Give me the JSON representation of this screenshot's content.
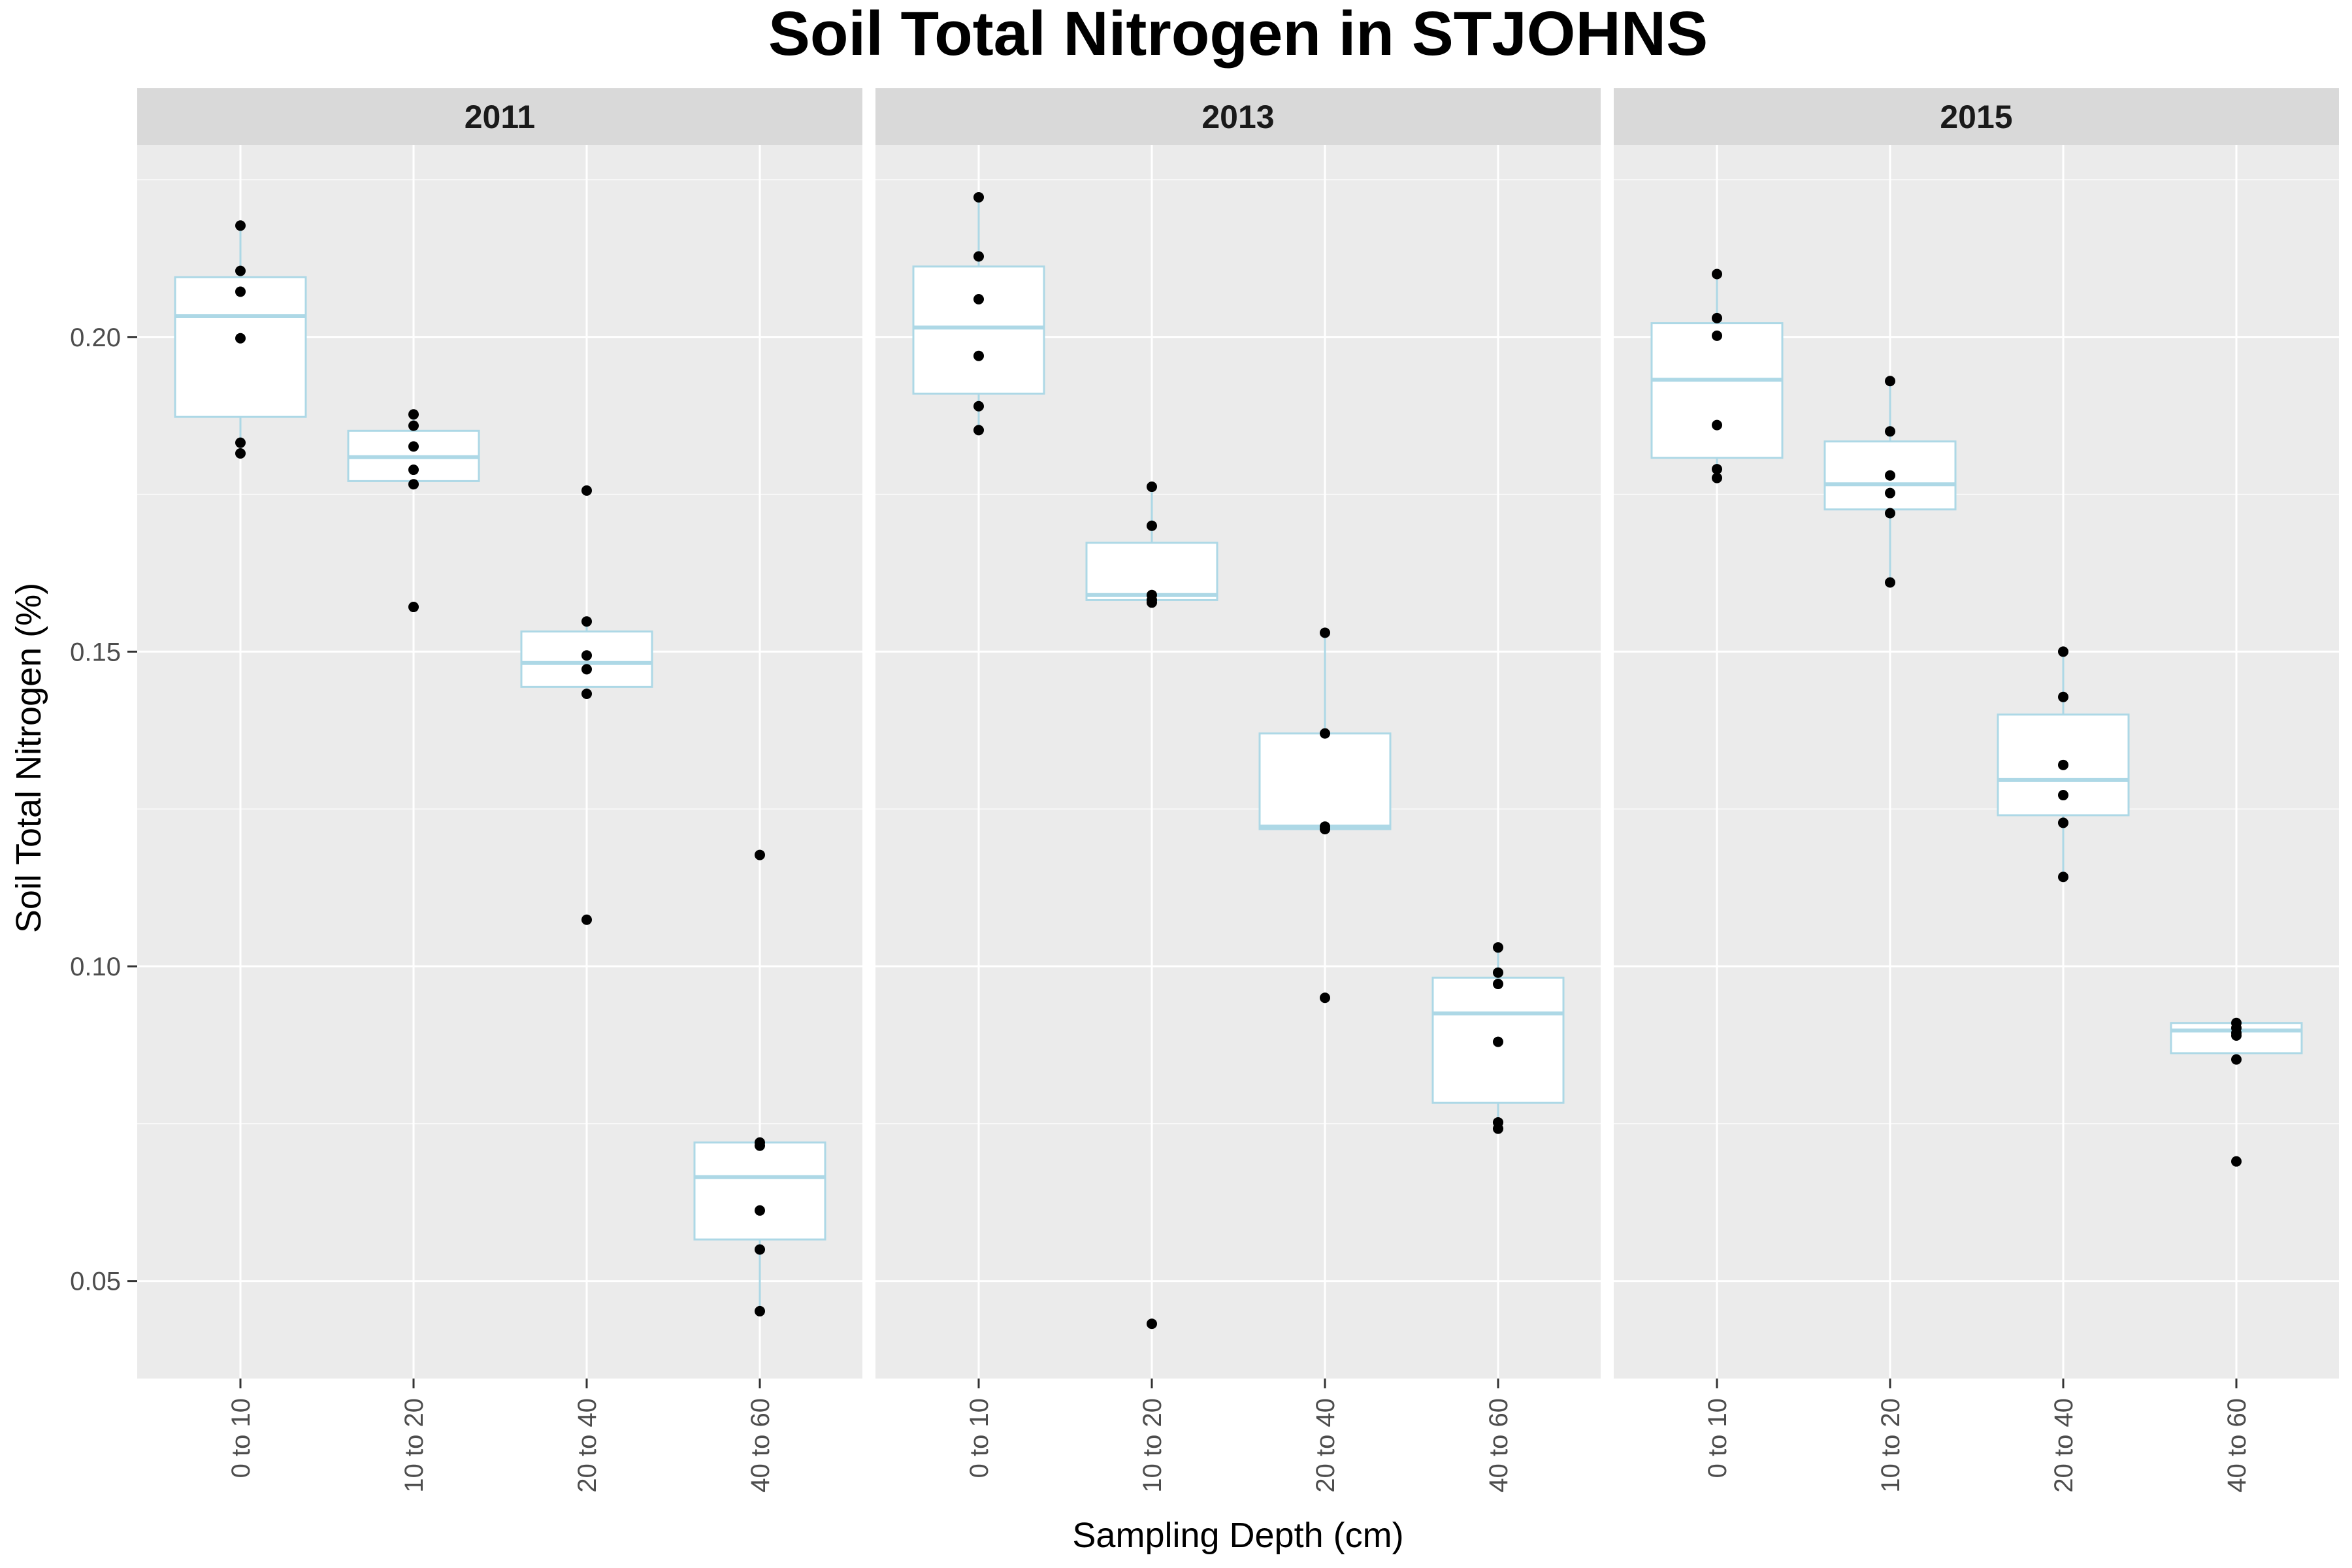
{
  "chart_data": {
    "type": "boxplot",
    "title": "Soil Total Nitrogen in STJOHNS",
    "xlabel": "Sampling Depth (cm)",
    "ylabel": "Soil Total Nitrogen (%)",
    "categories": [
      "0 to 10",
      "10 to 20",
      "20 to 40",
      "40 to 60"
    ],
    "y_ticks": [
      0.05,
      0.1,
      0.15,
      0.2
    ],
    "y_tick_labels": [
      "0.05",
      "0.10",
      "0.15",
      "0.20"
    ],
    "ylim": [
      0.0345,
      0.2305
    ],
    "grid": true,
    "colors": {
      "panel_bg": "#ebebeb",
      "strip_bg": "#d9d9d9",
      "grid_major": "#ffffff",
      "box_fill": "#ffffff",
      "box_stroke": "#add8e6",
      "point": "#000000",
      "text": "#000000",
      "tick_text": "#4d4d4d"
    },
    "panels": [
      {
        "label": "2011",
        "boxes": [
          {
            "category": "0 to 10",
            "q1": 0.1873,
            "median": 0.2033,
            "q3": 0.2095,
            "whisker_low": 0.1815,
            "whisker_high": 0.2177,
            "points": [
              0.2177,
              0.2105,
              0.2072,
              0.1998,
              0.1832,
              0.1815
            ]
          },
          {
            "category": "10 to 20",
            "q1": 0.1771,
            "median": 0.1809,
            "q3": 0.1851,
            "whisker_low": 0.1766,
            "whisker_high": 0.1877,
            "points": [
              0.1877,
              0.1859,
              0.1826,
              0.1789,
              0.1766,
              0.1571
            ]
          },
          {
            "category": "20 to 40",
            "q1": 0.1444,
            "median": 0.1482,
            "q3": 0.1532,
            "whisker_low": 0.1433,
            "whisker_high": 0.1548,
            "points": [
              0.1756,
              0.1548,
              0.1494,
              0.1472,
              0.1433,
              0.1074
            ]
          },
          {
            "category": "40 to 60",
            "q1": 0.0566,
            "median": 0.0665,
            "q3": 0.072,
            "whisker_low": 0.0452,
            "whisker_high": 0.072,
            "points": [
              0.1177,
              0.072,
              0.0715,
              0.0612,
              0.055,
              0.0452
            ]
          }
        ]
      },
      {
        "label": "2013",
        "boxes": [
          {
            "category": "0 to 10",
            "q1": 0.191,
            "median": 0.2015,
            "q3": 0.2112,
            "whisker_low": 0.1852,
            "whisker_high": 0.2222,
            "points": [
              0.2222,
              0.2128,
              0.206,
              0.197,
              0.189,
              0.1852
            ]
          },
          {
            "category": "10 to 20",
            "q1": 0.1582,
            "median": 0.159,
            "q3": 0.1673,
            "whisker_low": 0.1578,
            "whisker_high": 0.1762,
            "points": [
              0.1762,
              0.17,
              0.159,
              0.1582,
              0.1578,
              0.0432
            ]
          },
          {
            "category": "20 to 40",
            "q1": 0.1218,
            "median": 0.1222,
            "q3": 0.137,
            "whisker_low": 0.1218,
            "whisker_high": 0.153,
            "points": [
              0.153,
              0.137,
              0.1222,
              0.1218,
              0.095
            ]
          },
          {
            "category": "40 to 60",
            "q1": 0.0783,
            "median": 0.0925,
            "q3": 0.0982,
            "whisker_low": 0.0742,
            "whisker_high": 0.103,
            "points": [
              0.103,
              0.099,
              0.0972,
              0.088,
              0.0752,
              0.0742
            ]
          }
        ]
      },
      {
        "label": "2015",
        "boxes": [
          {
            "category": "0 to 10",
            "q1": 0.1808,
            "median": 0.1932,
            "q3": 0.2022,
            "whisker_low": 0.1776,
            "whisker_high": 0.21,
            "points": [
              0.21,
              0.203,
              0.2002,
              0.186,
              0.179,
              0.1776
            ]
          },
          {
            "category": "10 to 20",
            "q1": 0.1726,
            "median": 0.1766,
            "q3": 0.1834,
            "whisker_low": 0.161,
            "whisker_high": 0.193,
            "points": [
              0.193,
              0.185,
              0.178,
              0.1752,
              0.172,
              0.161
            ]
          },
          {
            "category": "20 to 40",
            "q1": 0.124,
            "median": 0.1296,
            "q3": 0.14,
            "whisker_low": 0.1142,
            "whisker_high": 0.15,
            "points": [
              0.15,
              0.1428,
              0.132,
              0.1272,
              0.1228,
              0.1142
            ]
          },
          {
            "category": "40 to 60",
            "q1": 0.0862,
            "median": 0.0898,
            "q3": 0.091,
            "whisker_low": 0.0852,
            "whisker_high": 0.091,
            "points": [
              0.091,
              0.0902,
              0.0894,
              0.089,
              0.0852,
              0.069
            ]
          }
        ]
      }
    ]
  }
}
